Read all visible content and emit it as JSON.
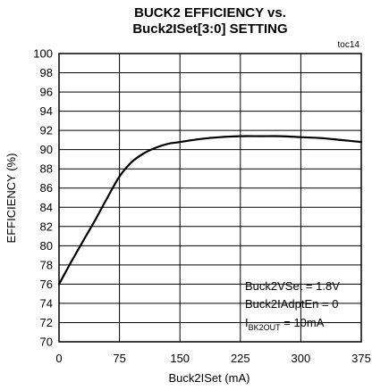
{
  "chart_data": {
    "type": "line",
    "title_line1": "BUCK2 EFFICIENCY vs.",
    "title_line2": "Buck2ISet[3:0] SETTING",
    "figure_id": "toc14",
    "xlabel": "Buck2ISet (mA)",
    "ylabel": "EFFICIENCY (%)",
    "xlim": [
      0,
      375
    ],
    "ylim": [
      70,
      100
    ],
    "x_ticks": [
      0,
      75,
      150,
      225,
      300,
      375
    ],
    "x_tick_labels": [
      "0",
      "75",
      "150",
      "225",
      "300",
      "375"
    ],
    "y_ticks": [
      70,
      72,
      74,
      76,
      78,
      80,
      82,
      84,
      86,
      88,
      90,
      92,
      94,
      96,
      98,
      100
    ],
    "y_tick_labels": [
      "70",
      "72",
      "74",
      "76",
      "78",
      "80",
      "82",
      "84",
      "86",
      "88",
      "90",
      "92",
      "94",
      "96",
      "98",
      "100"
    ],
    "grid": true,
    "series": [
      {
        "x": [
          0,
          15,
          30,
          45,
          60,
          75,
          90,
          105,
          120,
          135,
          150,
          175,
          200,
          225,
          250,
          275,
          300,
          325,
          350,
          375
        ],
        "y": [
          76.0,
          78.3,
          80.5,
          82.7,
          85.0,
          87.2,
          88.7,
          89.6,
          90.2,
          90.6,
          90.8,
          91.1,
          91.3,
          91.4,
          91.4,
          91.4,
          91.3,
          91.2,
          91.0,
          90.8
        ]
      }
    ],
    "annotations": {
      "line1": "Buck2VSet = 1.8V",
      "line2": "Buck2IAdptEn = 0",
      "line3_prefix": "I",
      "line3_subscript": "BK2OUT",
      "line3_suffix": " = 10mA"
    }
  }
}
